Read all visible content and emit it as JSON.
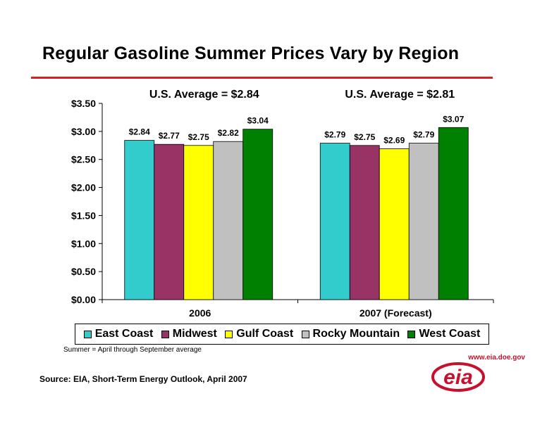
{
  "page": {
    "title": "Regular Gasoline Summer Prices Vary by Region",
    "footnote": "Summer = April through September average",
    "source": "Source:  EIA, Short-Term Energy Outlook, April 2007",
    "logo_url_text": "www.eia.doe.gov",
    "logo_text": "eia",
    "rule_color": "#e31b23"
  },
  "chart_data": {
    "type": "bar",
    "categories": [
      "2006",
      "2007 (Forecast)"
    ],
    "group_annotations": [
      "U.S. Average = $2.84",
      "U.S. Average = $2.81"
    ],
    "series": [
      {
        "name": "East Coast",
        "color": "#33cccc",
        "values": [
          2.84,
          2.79
        ],
        "labels": [
          "$2.84",
          "$2.79"
        ]
      },
      {
        "name": "Midwest",
        "color": "#993366",
        "values": [
          2.77,
          2.75
        ],
        "labels": [
          "$2.77",
          "$2.75"
        ]
      },
      {
        "name": "Gulf Coast",
        "color": "#ffff00",
        "values": [
          2.75,
          2.69
        ],
        "labels": [
          "$2.75",
          "$2.69"
        ]
      },
      {
        "name": "Rocky Mountain",
        "color": "#c0c0c0",
        "values": [
          2.82,
          2.79
        ],
        "labels": [
          "$2.82",
          "$2.79"
        ]
      },
      {
        "name": "West Coast",
        "color": "#008000",
        "values": [
          3.04,
          3.07
        ],
        "labels": [
          "$3.04",
          "$3.07"
        ]
      }
    ],
    "ylim": [
      0,
      3.5
    ],
    "yticks": [
      {
        "value": 0,
        "label": "$0.00"
      },
      {
        "value": 0.5,
        "label": "$0.50"
      },
      {
        "value": 1.0,
        "label": "$1.00"
      },
      {
        "value": 1.5,
        "label": "$1.50"
      },
      {
        "value": 2.0,
        "label": "$2.00"
      },
      {
        "value": 2.5,
        "label": "$2.50"
      },
      {
        "value": 3.0,
        "label": "$3.00"
      },
      {
        "value": 3.5,
        "label": "$3.50"
      }
    ],
    "grid": false,
    "legend_position": "bottom"
  }
}
